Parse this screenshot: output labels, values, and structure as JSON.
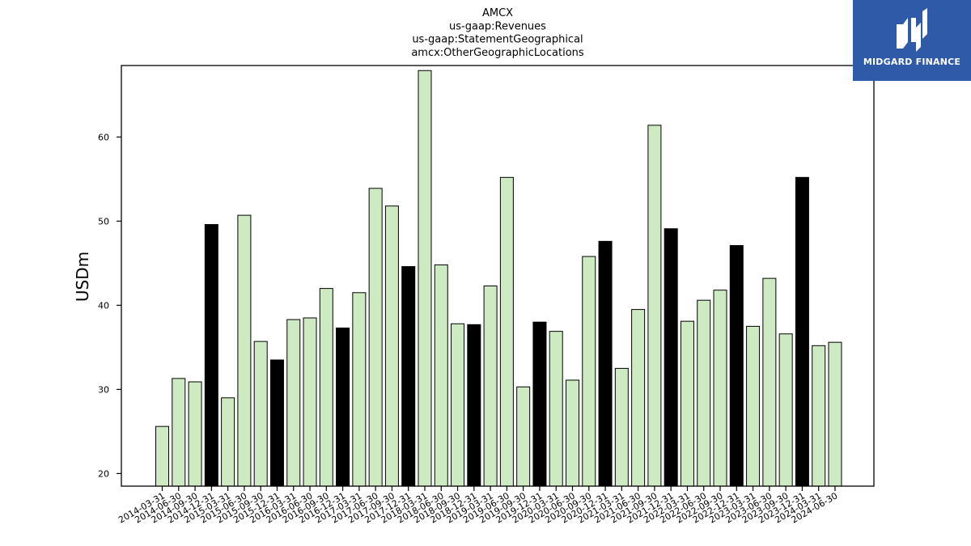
{
  "chart_data": {
    "type": "bar",
    "title_lines": [
      "AMCX",
      "us-gaap:Revenues",
      "us-gaap:StatementGeographical",
      "amcx:OtherGeographicLocations"
    ],
    "ylabel": "USDm",
    "xlabel": "",
    "ylim": [
      18.5,
      68.5
    ],
    "yticks": [
      20,
      30,
      40,
      50,
      60
    ],
    "grid": false,
    "categories": [
      "2014-03-31",
      "2014-06-30",
      "2014-09-30",
      "2014-12-31",
      "2015-03-31",
      "2015-06-30",
      "2015-09-30",
      "2015-12-31",
      "2016-03-31",
      "2016-06-30",
      "2016-09-30",
      "2016-12-31",
      "2017-03-31",
      "2017-06-30",
      "2017-09-30",
      "2017-12-31",
      "2018-03-31",
      "2018-06-30",
      "2018-09-30",
      "2018-12-31",
      "2019-03-31",
      "2019-06-30",
      "2019-09-30",
      "2019-12-31",
      "2020-03-31",
      "2020-06-30",
      "2020-09-30",
      "2020-12-31",
      "2021-03-31",
      "2021-06-30",
      "2021-09-30",
      "2021-12-31",
      "2022-03-31",
      "2022-06-30",
      "2022-09-30",
      "2022-12-31",
      "2023-03-31",
      "2023-06-30",
      "2023-09-30",
      "2023-12-31",
      "2024-03-31",
      "2024-06-30"
    ],
    "values": [
      25.6,
      31.3,
      30.9,
      49.6,
      29.0,
      50.7,
      35.7,
      33.5,
      38.3,
      38.5,
      42.0,
      37.3,
      41.5,
      53.9,
      51.8,
      44.6,
      67.9,
      44.8,
      37.8,
      37.7,
      42.3,
      55.2,
      30.3,
      38.0,
      36.9,
      31.1,
      45.8,
      47.6,
      32.5,
      39.5,
      61.4,
      49.1,
      38.1,
      40.6,
      41.8,
      47.1,
      37.5,
      43.2,
      36.6,
      55.2,
      35.2,
      35.6
    ],
    "highlight": [
      false,
      false,
      false,
      true,
      false,
      false,
      false,
      true,
      false,
      false,
      false,
      true,
      false,
      false,
      false,
      true,
      false,
      false,
      false,
      true,
      false,
      false,
      false,
      true,
      false,
      false,
      false,
      true,
      false,
      false,
      false,
      true,
      false,
      false,
      false,
      true,
      false,
      false,
      false,
      true,
      false,
      false
    ],
    "colors": {
      "bar": "#cdeac2",
      "bar_highlight": "#000000",
      "edge": "#000000"
    }
  },
  "logo": {
    "text": "MIDGARD FINANCE",
    "background": "#2f5aa8"
  }
}
